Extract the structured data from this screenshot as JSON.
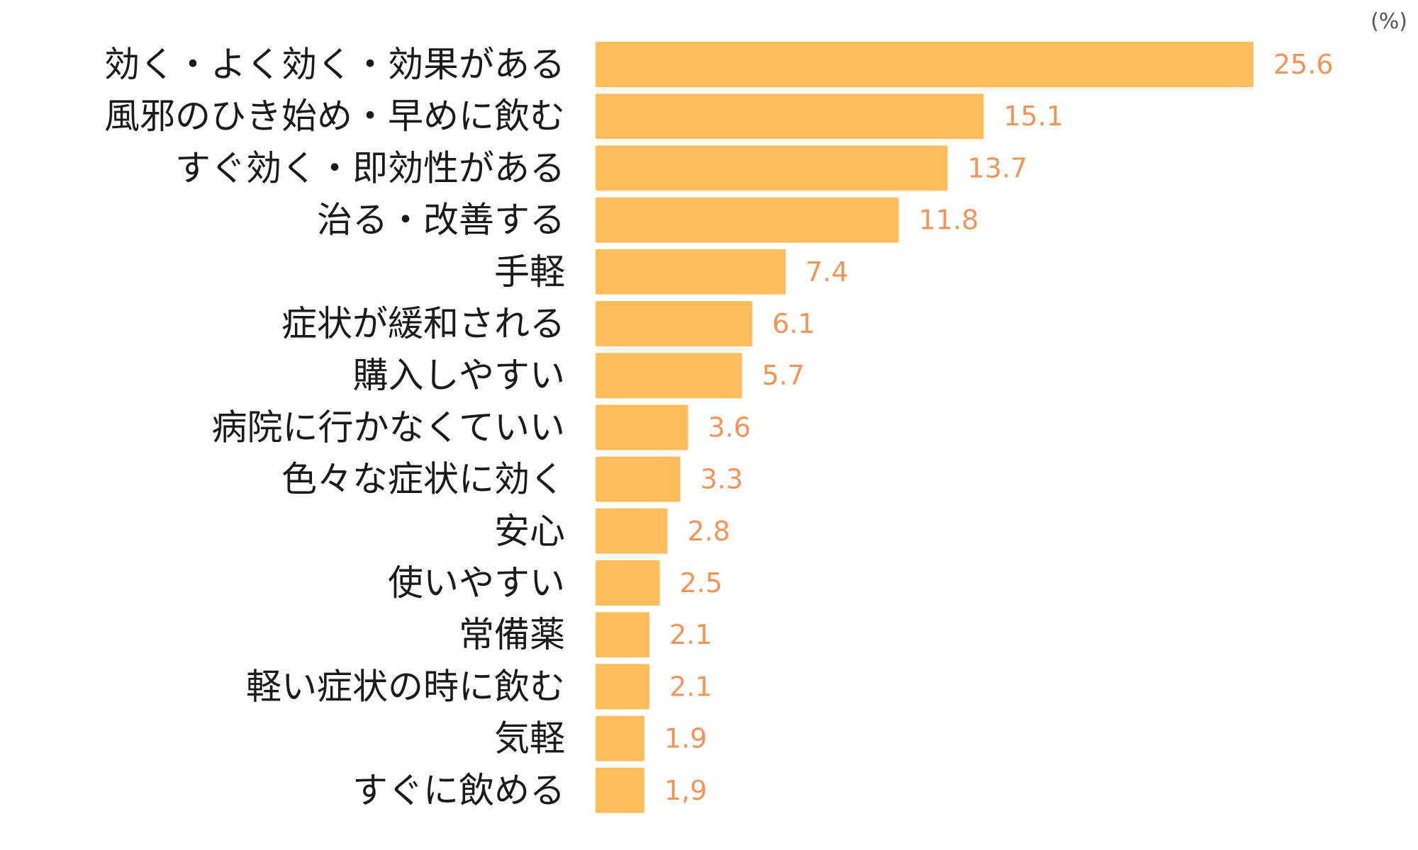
{
  "chart_data": {
    "type": "bar",
    "orientation": "horizontal",
    "unit": "(%)",
    "categories": [
      "効く・よく効く・効果がある",
      "風邪のひき始め・早めに飲む",
      "すぐ効く・即効性がある",
      "治る・改善する",
      "手軽",
      "症状が緩和される",
      "購入しやすい",
      "病院に行かなくていい",
      "色々な症状に効く",
      "安心",
      "使いやすい",
      "常備薬",
      "軽い症状の時に飲む",
      "気軽",
      "すぐに飲める"
    ],
    "values": [
      25.6,
      15.1,
      13.7,
      11.8,
      7.4,
      6.1,
      5.7,
      3.6,
      3.3,
      2.8,
      2.5,
      2.1,
      2.1,
      1.9,
      1.9
    ],
    "value_labels": [
      "25.6",
      "15.1",
      "13.7",
      "11.8",
      "7.4",
      "6.1",
      "5.7",
      "3.6",
      "3.3",
      "2.8",
      "2.5",
      "2.1",
      "2.1",
      "1.9",
      "1,9"
    ],
    "title": "",
    "xlabel": "",
    "ylabel": "",
    "xlim": [
      0,
      25.6
    ],
    "grid": false,
    "legend": "none",
    "colors": {
      "bar": "#FDBD5C",
      "value_label": "#F0955A",
      "category_label": "#1a1a1a",
      "unit_label": "#555555"
    }
  }
}
